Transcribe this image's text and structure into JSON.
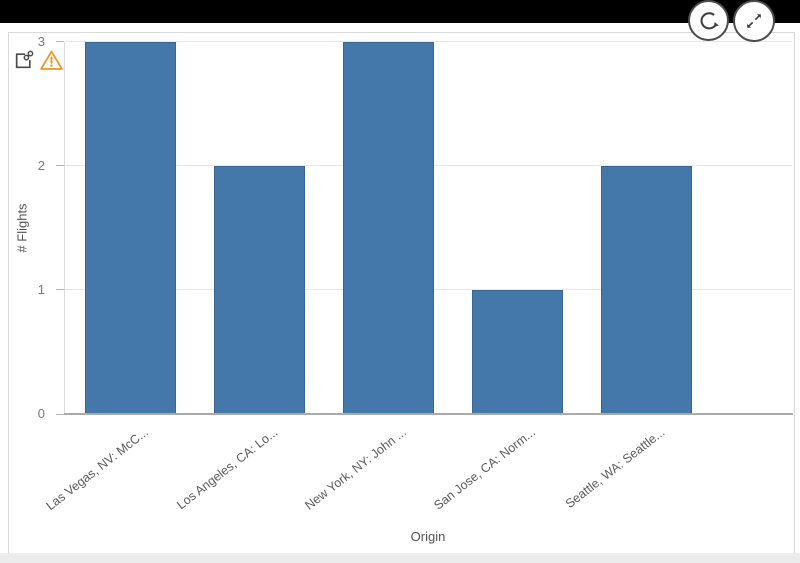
{
  "toolbar": {
    "refresh_button": {
      "icon": "refresh-icon"
    },
    "expand_button": {
      "icon": "expand-icon"
    }
  },
  "chart_card": {
    "share_icon": "share-link-icon",
    "warning_icon": "warning-triangle-icon"
  },
  "colors": {
    "top_bar": "#000000",
    "bar": "#4477aa",
    "warning": "#f39422",
    "icon": "#404040"
  },
  "chart_data": {
    "type": "bar",
    "categories": [
      "Las Vegas, NV: McC...",
      "Los Angeles, CA: Lo...",
      "New York, NY: John ...",
      "San Jose, CA: Norm...",
      "Seattle, WA: Seattle..."
    ],
    "values": [
      3,
      2,
      3,
      1,
      2
    ],
    "xlabel": "Origin",
    "ylabel": "# Flights",
    "ylim": [
      0,
      3
    ],
    "yticks": [
      0,
      1,
      2,
      3
    ],
    "grid": true,
    "legend": "none",
    "bar_color": "#4477aa"
  }
}
